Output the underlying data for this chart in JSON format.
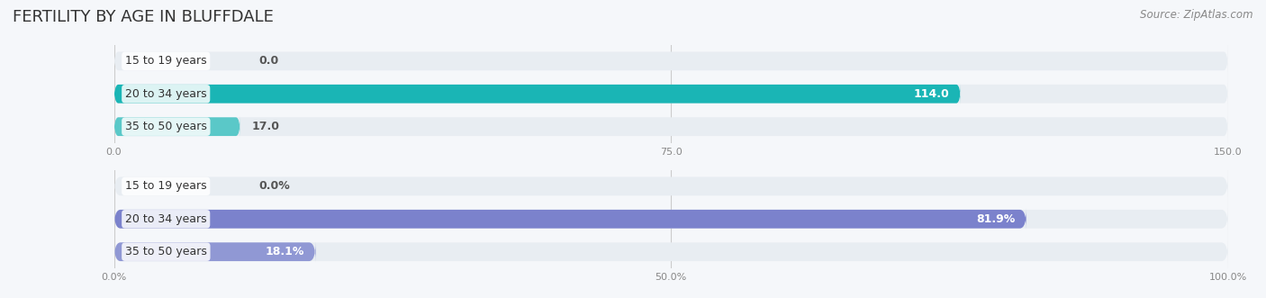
{
  "title": "FERTILITY BY AGE IN BLUFFDALE",
  "source": "Source: ZipAtlas.com",
  "chart1": {
    "categories": [
      "15 to 19 years",
      "20 to 34 years",
      "35 to 50 years"
    ],
    "values": [
      0.0,
      114.0,
      17.0
    ],
    "xlim": [
      0,
      150
    ],
    "xticks": [
      0.0,
      75.0,
      150.0
    ],
    "bar_colors": [
      "#7ecece",
      "#1ab5b5",
      "#5ac8c8"
    ],
    "bar_bg_color": "#e8edf2",
    "label_color_inside": "#ffffff",
    "label_color_outside": "#555555"
  },
  "chart2": {
    "categories": [
      "15 to 19 years",
      "20 to 34 years",
      "35 to 50 years"
    ],
    "values": [
      0.0,
      81.9,
      18.1
    ],
    "xlim": [
      0,
      100
    ],
    "xticks": [
      0.0,
      50.0,
      100.0
    ],
    "xtick_labels": [
      "0.0%",
      "50.0%",
      "100.0%"
    ],
    "bar_colors": [
      "#aab0dc",
      "#7b82cc",
      "#9098d4"
    ],
    "bar_bg_color": "#e8edf2",
    "label_color_inside": "#ffffff",
    "label_color_outside": "#555555"
  },
  "background_color": "#f5f7fa",
  "bar_height": 0.55,
  "label_fontsize": 9,
  "category_fontsize": 9,
  "title_fontsize": 13,
  "source_fontsize": 8.5
}
